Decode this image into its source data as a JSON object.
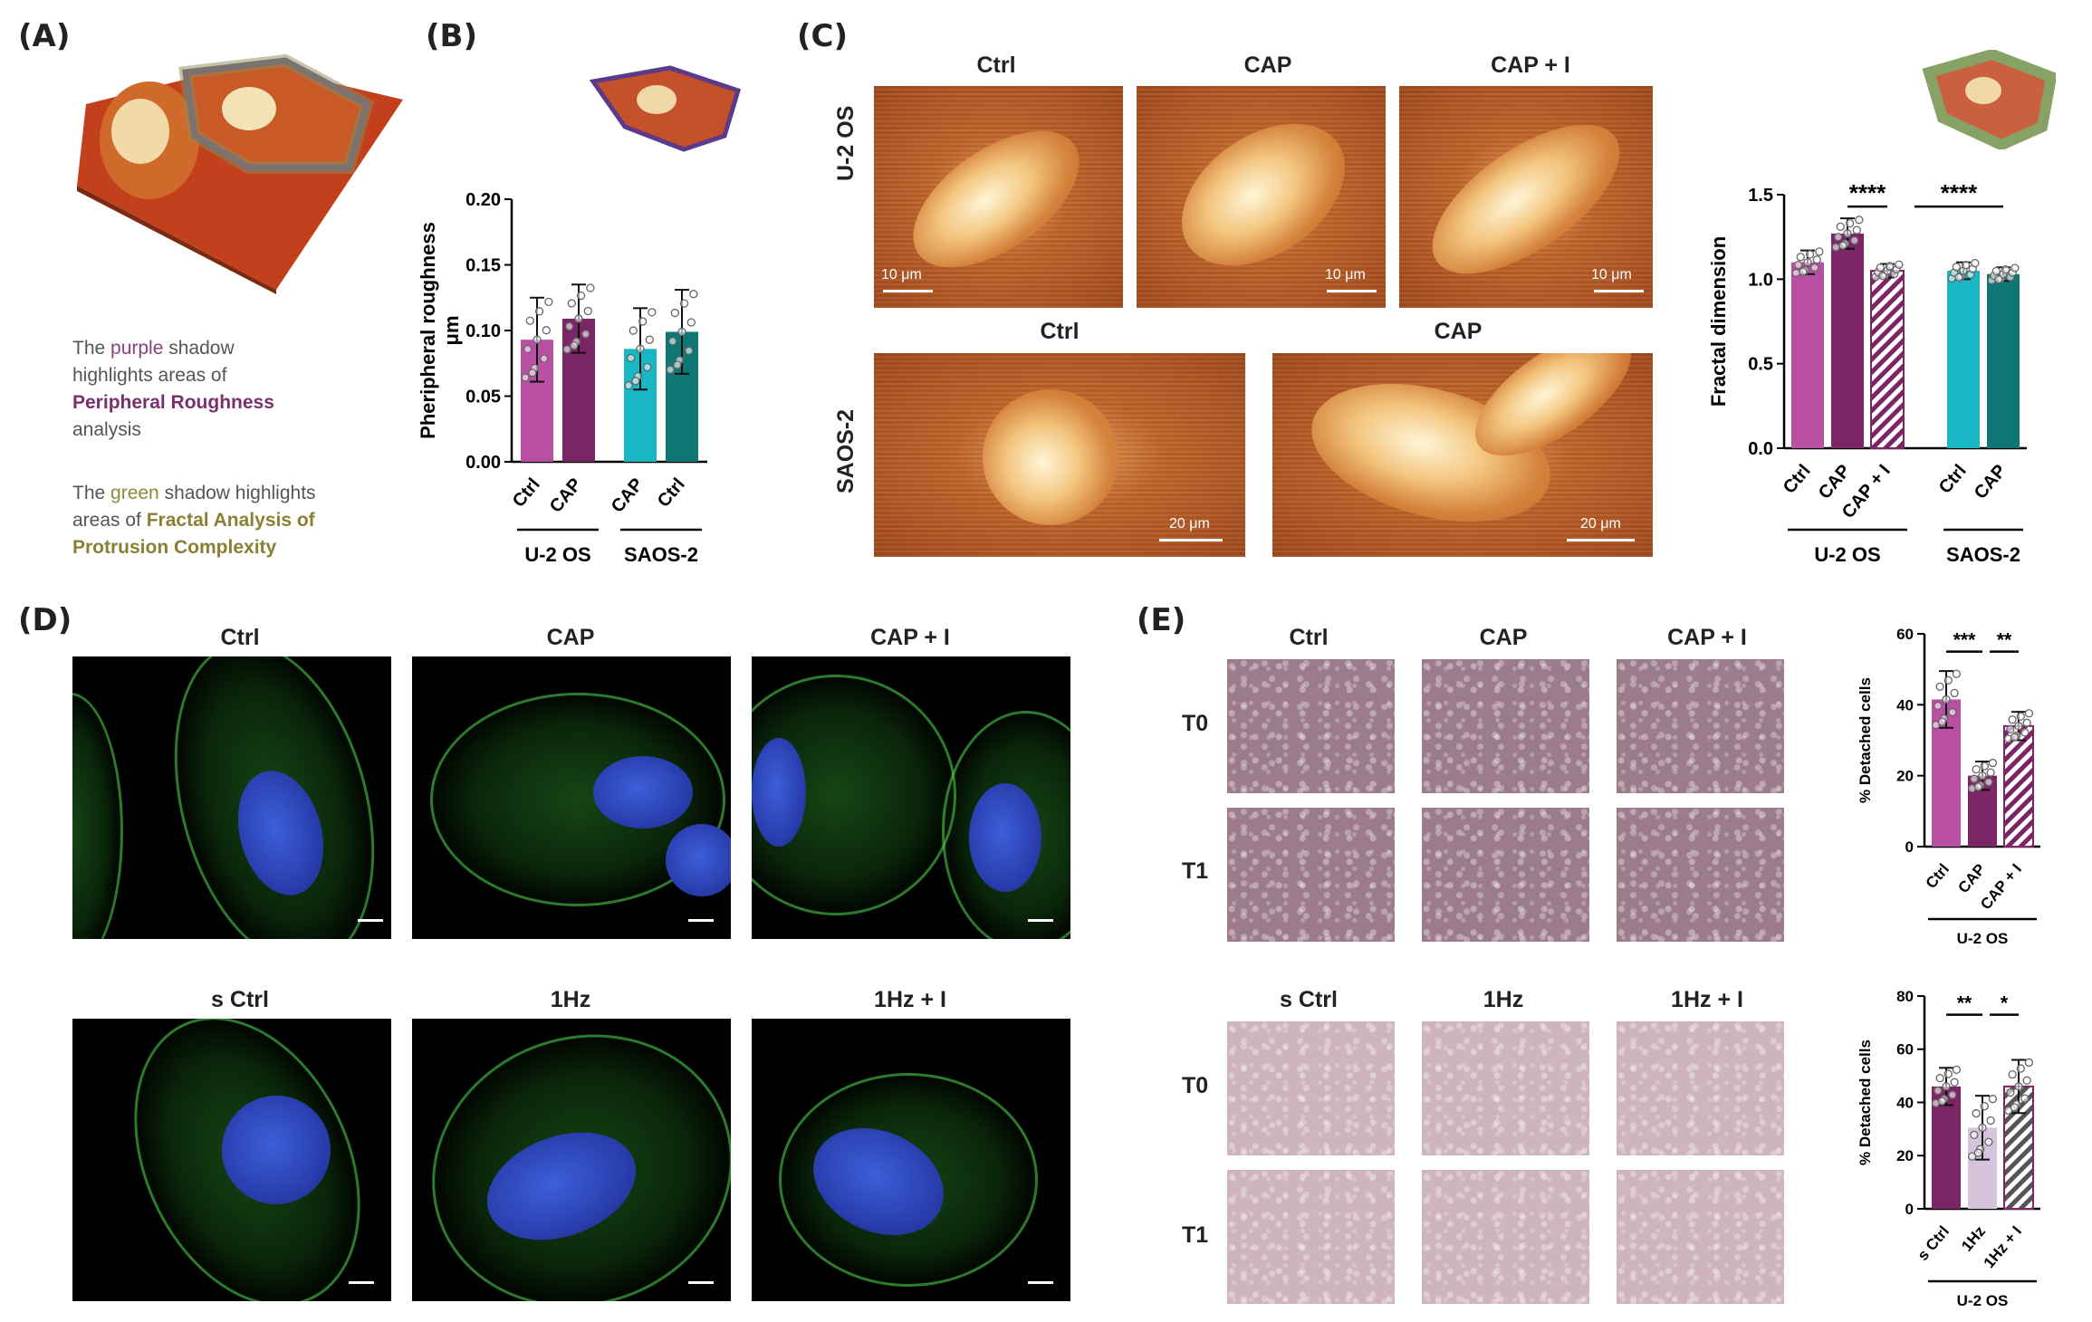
{
  "panels": {
    "A": "(A)",
    "B": "(B)",
    "C": "(C)",
    "D": "(D)",
    "E": "(E)"
  },
  "panelA": {
    "purple_text": [
      "The ",
      "purple",
      " shadow",
      "highlights areas of",
      "Peripheral Roughness",
      "analysis"
    ],
    "green_text": [
      "The ",
      "green",
      " shadow highlights",
      "areas of ",
      "Fractal Analysis of",
      "Protrusion Complexity"
    ]
  },
  "panelC": {
    "col_labels": [
      "Ctrl",
      "CAP",
      "CAP + I"
    ],
    "row_labels": [
      "U-2 OS",
      "SAOS-2"
    ],
    "saos_labels": [
      "Ctrl",
      "CAP"
    ],
    "scale_10": "10 μm",
    "scale_20": "20 μm"
  },
  "panelD": {
    "top_labels": [
      "Ctrl",
      "CAP",
      "CAP + I"
    ],
    "bottom_labels": [
      "s Ctrl",
      "1Hz",
      "1Hz + I"
    ]
  },
  "panelE": {
    "top_labels": [
      "Ctrl",
      "CAP",
      "CAP + I"
    ],
    "bottom_labels": [
      "s Ctrl",
      "1Hz",
      "1Hz + I"
    ],
    "row_labels": [
      "T0",
      "T1",
      "T0",
      "T1"
    ]
  },
  "colors": {
    "magenta": "#b84fa2",
    "plum": "#7b2466",
    "teal": "#19b6c4",
    "darkteal": "#0f7676"
  },
  "chart_data": [
    {
      "id": "B",
      "type": "bar",
      "ylabel": "Pheripheral roughness\nμm",
      "ylim": [
        0,
        0.2
      ],
      "yticks": [
        "0.00",
        "0.05",
        "0.10",
        "0.15",
        "0.20"
      ],
      "categories": [
        "Ctrl",
        "CAP",
        "CAP",
        "Ctrl"
      ],
      "groups": [
        "U-2 OS",
        "SAOS-2"
      ],
      "values": [
        0.093,
        0.109,
        0.086,
        0.099
      ],
      "errors": [
        0.032,
        0.026,
        0.031,
        0.032
      ],
      "colors": [
        "#b84fa2",
        "#7b2466",
        "#19b6c4",
        "#0f7676"
      ]
    },
    {
      "id": "C",
      "type": "bar",
      "ylabel": "Fractal dimension",
      "ylim": [
        0,
        1.5
      ],
      "yticks": [
        "0.0",
        "0.5",
        "1.0",
        "1.5"
      ],
      "categories": [
        "Ctrl",
        "CAP",
        "CAP + I",
        "Ctrl",
        "CAP"
      ],
      "groups": [
        "U-2 OS",
        "SAOS-2"
      ],
      "values": [
        1.1,
        1.27,
        1.05,
        1.05,
        1.03
      ],
      "errors": [
        0.07,
        0.09,
        0.04,
        0.05,
        0.04
      ],
      "colors": [
        "#b84fa2",
        "#7b2466",
        "hatched-plum",
        "#19b6c4",
        "#0f7676"
      ],
      "significance": [
        "****",
        "****"
      ]
    },
    {
      "id": "E-top",
      "type": "bar",
      "ylabel": "% Detached cells",
      "ylim": [
        0,
        60
      ],
      "yticks": [
        "0",
        "20",
        "40",
        "60"
      ],
      "categories": [
        "Ctrl",
        "CAP",
        "CAP + I"
      ],
      "groups": [
        "U-2 OS"
      ],
      "values": [
        41.5,
        20,
        34
      ],
      "errors": [
        8,
        4,
        4
      ],
      "colors": [
        "#b84fa2",
        "#7b2466",
        "hatched-plum"
      ],
      "significance": [
        "***",
        "**"
      ]
    },
    {
      "id": "E-bottom",
      "type": "bar",
      "ylabel": "% Detached cells",
      "ylim": [
        0,
        80
      ],
      "yticks": [
        "0",
        "20",
        "40",
        "60",
        "80"
      ],
      "categories": [
        "s Ctrl",
        "1Hz",
        "1Hz + I"
      ],
      "groups": [
        "U-2 OS"
      ],
      "values": [
        46,
        30.5,
        46
      ],
      "errors": [
        7,
        12,
        10
      ],
      "colors": [
        "#7b2466",
        "#d6c4dc",
        "hatched-grey"
      ],
      "significance": [
        "**",
        "*"
      ]
    }
  ]
}
